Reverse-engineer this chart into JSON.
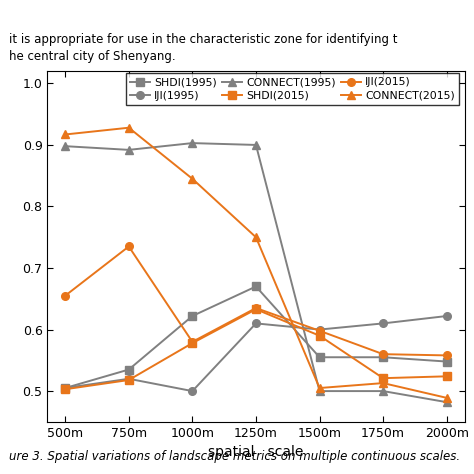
{
  "x_labels": [
    "500m",
    "750m",
    "1000m",
    "1250m",
    "1500m",
    "1750m",
    "2000m"
  ],
  "x_values": [
    500,
    750,
    1000,
    1250,
    1500,
    1750,
    2000
  ],
  "SHDI_1995": [
    0.505,
    0.535,
    0.622,
    0.67,
    0.555,
    0.555,
    0.548
  ],
  "IJI_1995": [
    0.505,
    0.52,
    0.5,
    0.61,
    0.6,
    0.61,
    0.622
  ],
  "CONNECT_1995": [
    0.898,
    0.892,
    0.903,
    0.9,
    0.5,
    0.5,
    0.482
  ],
  "SHDI_2015": [
    0.503,
    0.518,
    0.578,
    0.633,
    0.59,
    0.521,
    0.524
  ],
  "IJI_2015": [
    0.655,
    0.735,
    0.58,
    0.635,
    0.598,
    0.56,
    0.558
  ],
  "CONNECT_2015": [
    0.917,
    0.928,
    0.845,
    0.75,
    0.505,
    0.513,
    0.489
  ],
  "color_1995": "#808080",
  "color_2015": "#E8751A",
  "xlabel": "spatial   scale",
  "ylim": [
    0.45,
    1.02
  ],
  "yticks": [
    0.5,
    0.6,
    0.7,
    0.8,
    0.9,
    1.0
  ],
  "top_text_line1": "it is appropriate for use in the characteristic zone for identifying t",
  "top_text_line2": "he central city of Shenyang.",
  "caption": "ure 3. Spatial variations of landscape metrics on multiple continuous scales.",
  "figsize": [
    4.74,
    4.74
  ]
}
